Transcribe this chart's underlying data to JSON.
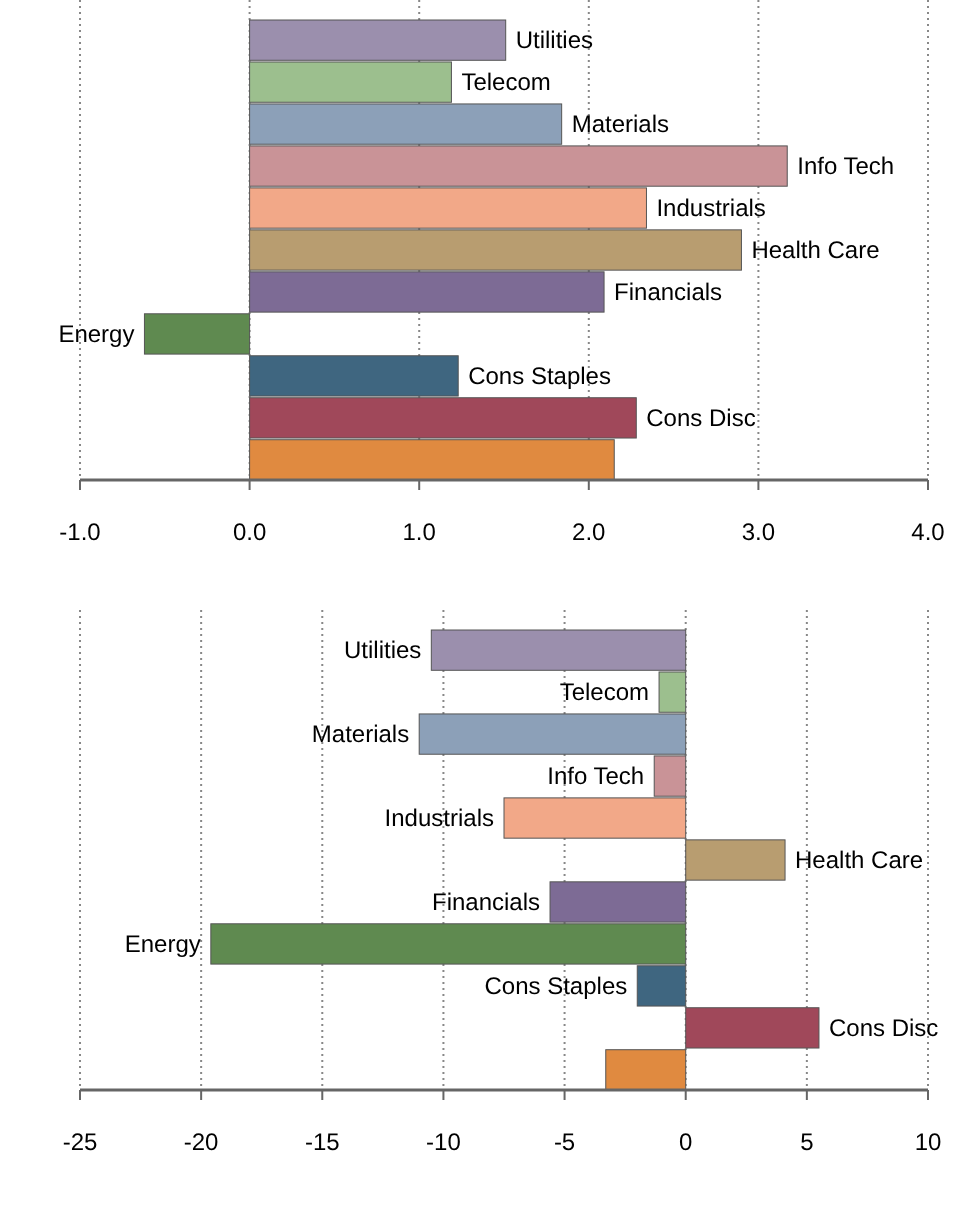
{
  "chart_data": [
    {
      "type": "bar",
      "orientation": "horizontal",
      "grid": "x",
      "categories": [
        "Utilities",
        "Telecom",
        "Materials",
        "Info Tech",
        "Industrials",
        "Health Care",
        "Financials",
        "Energy",
        "Cons Staples",
        "Cons Disc",
        null
      ],
      "values": [
        1.51,
        1.19,
        1.84,
        3.17,
        2.34,
        2.9,
        2.09,
        -0.62,
        1.23,
        2.28,
        2.15
      ],
      "colors": [
        "#9b8fad",
        "#9cbf8e",
        "#8ca0b8",
        "#c99397",
        "#f2a888",
        "#b89d70",
        "#7d6b95",
        "#5f8a50",
        "#3f6680",
        "#a0485a",
        "#e08a40"
      ],
      "xlim": [
        -1,
        4
      ],
      "xticks": [
        {
          "value": -1,
          "label": "-1.0"
        },
        {
          "value": 0,
          "label": "0.0"
        },
        {
          "value": 1,
          "label": "1.0"
        },
        {
          "value": 2,
          "label": "2.0"
        },
        {
          "value": 3,
          "label": "3.0"
        },
        {
          "value": 4,
          "label": "4.0"
        }
      ]
    },
    {
      "type": "bar",
      "orientation": "horizontal",
      "grid": "x",
      "categories": [
        "Utilities",
        "Telecom",
        "Materials",
        "Info Tech",
        "Industrials",
        "Health Care",
        "Financials",
        "Energy",
        "Cons Staples",
        "Cons Disc",
        null
      ],
      "values": [
        -10.5,
        -1.1,
        -11,
        -1.3,
        -7.5,
        4.1,
        -5.6,
        -19.6,
        -2,
        5.5,
        -3.3
      ],
      "colors": [
        "#9b8fad",
        "#9cbf8e",
        "#8ca0b8",
        "#c99397",
        "#f2a888",
        "#b89d70",
        "#7d6b95",
        "#5f8a50",
        "#3f6680",
        "#a0485a",
        "#e08a40"
      ],
      "xlim": [
        -25,
        10
      ],
      "xticks": [
        -25,
        -20,
        -15,
        -10,
        -5,
        0,
        5,
        10
      ]
    }
  ]
}
